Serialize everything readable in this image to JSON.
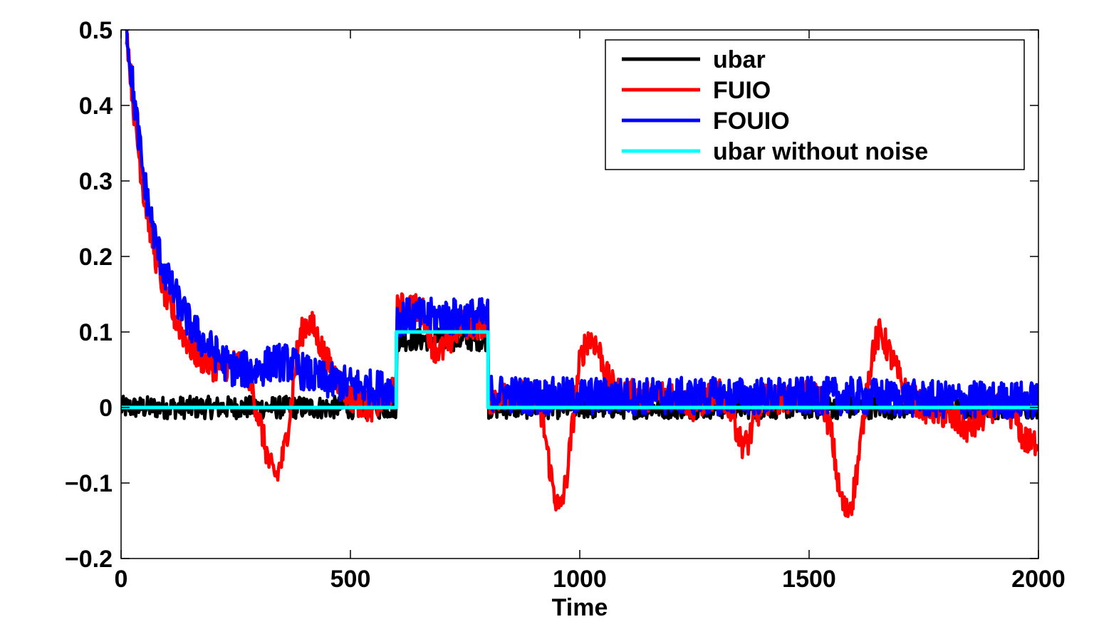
{
  "chart_data": {
    "type": "line",
    "xlabel": "Time",
    "ylabel": "",
    "xlim": [
      0,
      2000
    ],
    "ylim": [
      -0.2,
      0.5
    ],
    "x_ticks": [
      0,
      500,
      1000,
      1500,
      2000
    ],
    "x_tick_labels": [
      "0",
      "500",
      "1000",
      "1500",
      "2000"
    ],
    "y_ticks": [
      -0.2,
      -0.1,
      0,
      0.1,
      0.2,
      0.3,
      0.4,
      0.5
    ],
    "y_tick_labels": [
      "−0.2",
      "−0.1",
      "0",
      "0.1",
      "0.2",
      "0.3",
      "0.4",
      "0.5"
    ],
    "grid": false,
    "legend_position": "top-right",
    "series": [
      {
        "name": "ubar",
        "color": "#000000",
        "points": [
          [
            0,
            0
          ],
          [
            600,
            0
          ],
          [
            601,
            0.09
          ],
          [
            800,
            0.09
          ],
          [
            801,
            0
          ],
          [
            2000,
            0
          ]
        ],
        "noise": 0.015
      },
      {
        "name": "FUIO",
        "color": "#ff0000",
        "points": [
          [
            12,
            0.5
          ],
          [
            30,
            0.38
          ],
          [
            50,
            0.28
          ],
          [
            75,
            0.2
          ],
          [
            100,
            0.14
          ],
          [
            125,
            0.11
          ],
          [
            150,
            0.08
          ],
          [
            175,
            0.065
          ],
          [
            200,
            0.055
          ],
          [
            230,
            0.055
          ],
          [
            260,
            0.06
          ],
          [
            280,
            0.04
          ],
          [
            295,
            0.0
          ],
          [
            310,
            -0.04
          ],
          [
            325,
            -0.08
          ],
          [
            340,
            -0.09
          ],
          [
            355,
            -0.06
          ],
          [
            370,
            0.0
          ],
          [
            385,
            0.08
          ],
          [
            400,
            0.11
          ],
          [
            415,
            0.11
          ],
          [
            430,
            0.09
          ],
          [
            450,
            0.06
          ],
          [
            470,
            0.04
          ],
          [
            490,
            0.02
          ],
          [
            510,
            0.01
          ],
          [
            540,
            0.0
          ],
          [
            560,
            0.005
          ],
          [
            585,
            0.02
          ],
          [
            600,
            0.02
          ],
          [
            601,
            0.13
          ],
          [
            630,
            0.135
          ],
          [
            660,
            0.125
          ],
          [
            680,
            0.08
          ],
          [
            700,
            0.075
          ],
          [
            720,
            0.09
          ],
          [
            740,
            0.11
          ],
          [
            760,
            0.11
          ],
          [
            780,
            0.11
          ],
          [
            800,
            0.11
          ],
          [
            801,
            0.01
          ],
          [
            850,
            0.02
          ],
          [
            900,
            0.015
          ],
          [
            920,
            -0.02
          ],
          [
            940,
            -0.1
          ],
          [
            955,
            -0.14
          ],
          [
            970,
            -0.1
          ],
          [
            985,
            -0.02
          ],
          [
            1000,
            0.06
          ],
          [
            1015,
            0.09
          ],
          [
            1030,
            0.09
          ],
          [
            1045,
            0.07
          ],
          [
            1060,
            0.04
          ],
          [
            1080,
            0.02
          ],
          [
            1150,
            0.015
          ],
          [
            1200,
            0.02
          ],
          [
            1250,
            0.0
          ],
          [
            1300,
            0.02
          ],
          [
            1330,
            0.0
          ],
          [
            1350,
            -0.045
          ],
          [
            1365,
            -0.05
          ],
          [
            1380,
            -0.02
          ],
          [
            1400,
            0.01
          ],
          [
            1500,
            0.015
          ],
          [
            1530,
            0.01
          ],
          [
            1550,
            -0.04
          ],
          [
            1565,
            -0.11
          ],
          [
            1580,
            -0.14
          ],
          [
            1595,
            -0.12
          ],
          [
            1610,
            -0.06
          ],
          [
            1625,
            0.02
          ],
          [
            1640,
            0.08
          ],
          [
            1655,
            0.1
          ],
          [
            1670,
            0.08
          ],
          [
            1690,
            0.05
          ],
          [
            1710,
            0.02
          ],
          [
            1750,
            0.0
          ],
          [
            1800,
            -0.01
          ],
          [
            1850,
            -0.03
          ],
          [
            1900,
            0.0
          ],
          [
            1950,
            -0.01
          ],
          [
            1965,
            -0.04
          ],
          [
            1985,
            -0.05
          ],
          [
            2000,
            -0.04
          ]
        ],
        "noise": 0.02
      },
      {
        "name": "FOUIO",
        "color": "#0000ff",
        "points": [
          [
            12,
            0.5
          ],
          [
            30,
            0.4
          ],
          [
            50,
            0.3
          ],
          [
            75,
            0.22
          ],
          [
            100,
            0.17
          ],
          [
            125,
            0.14
          ],
          [
            150,
            0.11
          ],
          [
            175,
            0.09
          ],
          [
            200,
            0.075
          ],
          [
            225,
            0.06
          ],
          [
            250,
            0.05
          ],
          [
            300,
            0.05
          ],
          [
            330,
            0.06
          ],
          [
            360,
            0.06
          ],
          [
            390,
            0.05
          ],
          [
            420,
            0.04
          ],
          [
            450,
            0.035
          ],
          [
            500,
            0.03
          ],
          [
            550,
            0.025
          ],
          [
            600,
            0.025
          ],
          [
            601,
            0.12
          ],
          [
            700,
            0.12
          ],
          [
            800,
            0.12
          ],
          [
            801,
            0.02
          ],
          [
            900,
            0.015
          ],
          [
            1000,
            0.015
          ],
          [
            1200,
            0.015
          ],
          [
            1400,
            0.015
          ],
          [
            1600,
            0.015
          ],
          [
            1800,
            0.01
          ],
          [
            2000,
            0.01
          ]
        ],
        "noise": 0.025
      },
      {
        "name": "ubar without noise",
        "color": "#00ffff",
        "points": [
          [
            0,
            0
          ],
          [
            600,
            0
          ],
          [
            600,
            0.1
          ],
          [
            800,
            0.1
          ],
          [
            800,
            0
          ],
          [
            2000,
            0
          ]
        ],
        "noise": 0
      }
    ]
  }
}
